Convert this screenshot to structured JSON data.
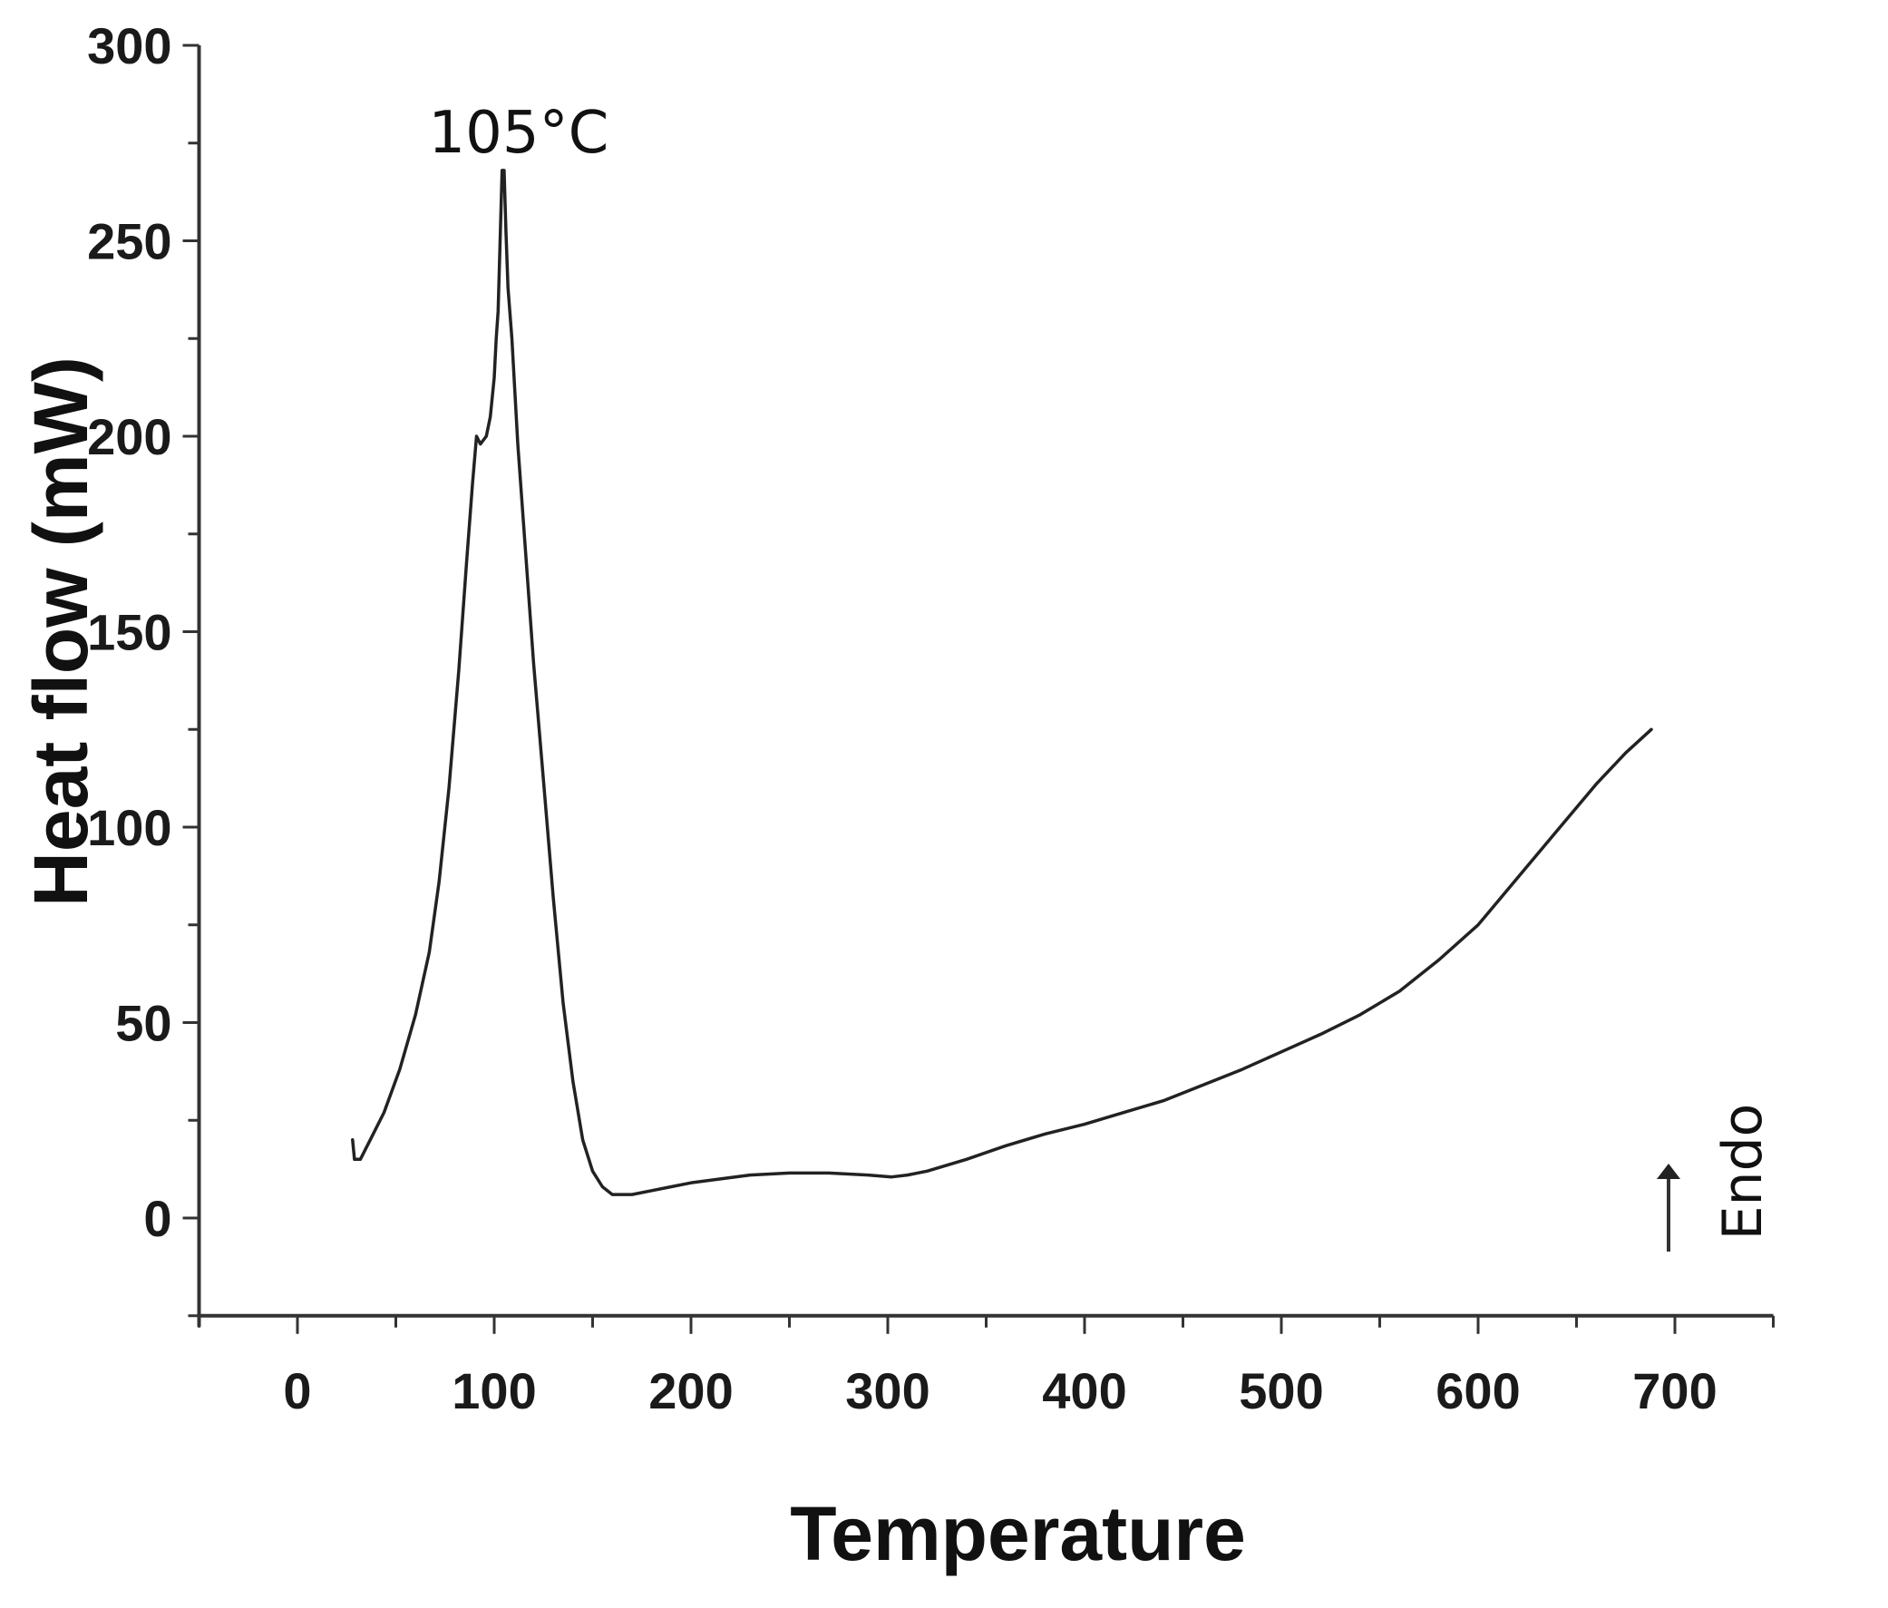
{
  "chart_data": {
    "type": "line",
    "title": "",
    "xlabel": "Temperature",
    "ylabel": "Heat flow (mW)",
    "xlim": [
      -50,
      750
    ],
    "ylim": [
      -25,
      300
    ],
    "x_ticks": [
      0,
      100,
      200,
      300,
      400,
      500,
      600,
      700
    ],
    "y_ticks": [
      0,
      50,
      100,
      150,
      200,
      250,
      300
    ],
    "grid": false,
    "line_color": "#222222",
    "series": [
      {
        "name": "",
        "points": [
          [
            28,
            20
          ],
          [
            29,
            15
          ],
          [
            32,
            15
          ],
          [
            37,
            20
          ],
          [
            44,
            27
          ],
          [
            52,
            38
          ],
          [
            60,
            52
          ],
          [
            67,
            68
          ],
          [
            72,
            86
          ],
          [
            77,
            110
          ],
          [
            82,
            140
          ],
          [
            86,
            168
          ],
          [
            89,
            188
          ],
          [
            91,
            200
          ],
          [
            93,
            198
          ],
          [
            96,
            200
          ],
          [
            98,
            205
          ],
          [
            100,
            215
          ],
          [
            101,
            225
          ],
          [
            102,
            232
          ],
          [
            103,
            250
          ],
          [
            104,
            268
          ],
          [
            105,
            268
          ],
          [
            106,
            252
          ],
          [
            107,
            238
          ],
          [
            109,
            225
          ],
          [
            112,
            198
          ],
          [
            116,
            170
          ],
          [
            120,
            142
          ],
          [
            125,
            112
          ],
          [
            130,
            82
          ],
          [
            135,
            55
          ],
          [
            140,
            35
          ],
          [
            145,
            20
          ],
          [
            150,
            12
          ],
          [
            155,
            8
          ],
          [
            160,
            6
          ],
          [
            170,
            6
          ],
          [
            180,
            7
          ],
          [
            190,
            8
          ],
          [
            200,
            9
          ],
          [
            215,
            10
          ],
          [
            230,
            11
          ],
          [
            250,
            11.5
          ],
          [
            270,
            11.5
          ],
          [
            290,
            11
          ],
          [
            302,
            10.5
          ],
          [
            310,
            11
          ],
          [
            320,
            12
          ],
          [
            340,
            15
          ],
          [
            360,
            18.5
          ],
          [
            380,
            21.5
          ],
          [
            400,
            24
          ],
          [
            420,
            27
          ],
          [
            440,
            30
          ],
          [
            460,
            34
          ],
          [
            480,
            38
          ],
          [
            500,
            42.5
          ],
          [
            520,
            47
          ],
          [
            540,
            52
          ],
          [
            560,
            58
          ],
          [
            580,
            66
          ],
          [
            600,
            75
          ],
          [
            620,
            87
          ],
          [
            640,
            99
          ],
          [
            660,
            111
          ],
          [
            675,
            119
          ],
          [
            688,
            125
          ]
        ]
      }
    ],
    "annotations": [
      {
        "text": "105°C",
        "x": 105,
        "y": 280
      }
    ],
    "indicator": {
      "label": "Endo",
      "direction": "up"
    }
  }
}
